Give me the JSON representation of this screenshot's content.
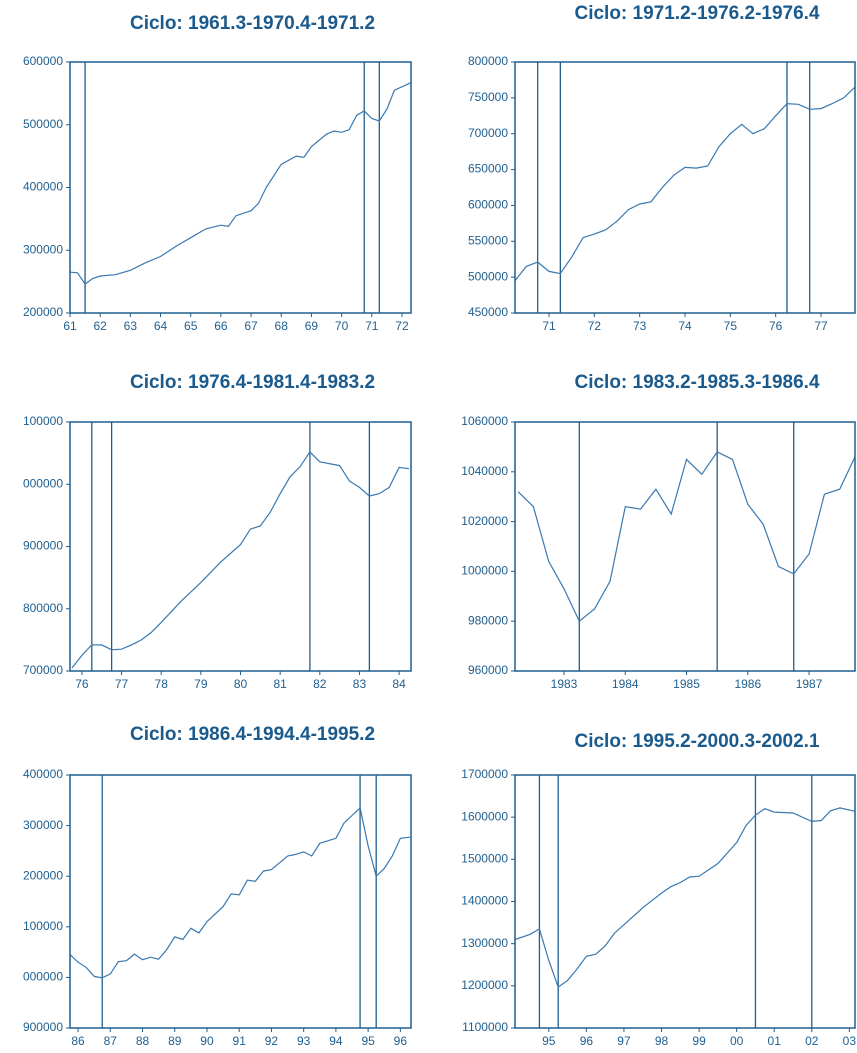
{
  "chart_data": [
    {
      "type": "line",
      "title": "Ciclo: 1961.3-1970.4-1971.2",
      "color": "#3a78b0",
      "x": [
        1961.0,
        1961.25,
        1961.5,
        1961.75,
        1962.0,
        1962.5,
        1963.0,
        1963.5,
        1964.0,
        1964.5,
        1965.0,
        1965.5,
        1966.0,
        1966.25,
        1966.5,
        1967.0,
        1967.25,
        1967.5,
        1968.0,
        1968.5,
        1968.75,
        1969.0,
        1969.5,
        1969.75,
        1970.0,
        1970.25,
        1970.5,
        1970.75,
        1971.0,
        1971.25,
        1971.5,
        1971.75,
        1972.3
      ],
      "series": [
        {
          "values": [
            265000,
            264000,
            246000,
            255000,
            259000,
            261000,
            268000,
            280000,
            290000,
            306000,
            320000,
            334000,
            340000,
            338000,
            355000,
            363000,
            375000,
            400000,
            437000,
            450000,
            448000,
            465000,
            485000,
            490000,
            488000,
            492000,
            515000,
            522000,
            510000,
            506000,
            525000,
            555000,
            567000
          ]
        }
      ],
      "xlim": [
        1961,
        1972.3
      ],
      "ylim": [
        200000,
        600000
      ],
      "xticks": [
        {
          "value": 1961,
          "label": "61"
        },
        {
          "value": 1962,
          "label": "62"
        },
        {
          "value": 1963,
          "label": "63"
        },
        {
          "value": 1964,
          "label": "64"
        },
        {
          "value": 1965,
          "label": "65"
        },
        {
          "value": 1966,
          "label": "66"
        },
        {
          "value": 1967,
          "label": "67"
        },
        {
          "value": 1968,
          "label": "68"
        },
        {
          "value": 1969,
          "label": "69"
        },
        {
          "value": 1970,
          "label": "70"
        },
        {
          "value": 1971,
          "label": "71"
        },
        {
          "value": 1972,
          "label": "72"
        }
      ],
      "yticks": [
        200000,
        300000,
        400000,
        500000,
        600000
      ],
      "vlines": [
        1961.5,
        1970.75,
        1971.25
      ]
    },
    {
      "type": "line",
      "title": "Ciclo: 1971.2-1976.2-1976.4",
      "color": "#3a78b0",
      "x": [
        1970.25,
        1970.5,
        1970.75,
        1971.0,
        1971.25,
        1971.5,
        1971.75,
        1972.0,
        1972.25,
        1972.5,
        1972.75,
        1973.0,
        1973.25,
        1973.5,
        1973.75,
        1974.0,
        1974.25,
        1974.5,
        1974.75,
        1975.0,
        1975.25,
        1975.5,
        1975.75,
        1976.0,
        1976.25,
        1976.5,
        1976.75,
        1977.0,
        1977.25,
        1977.5,
        1977.75
      ],
      "series": [
        {
          "values": [
            495000,
            515000,
            521000,
            508000,
            505000,
            528000,
            555000,
            560000,
            566000,
            578000,
            594000,
            602000,
            605000,
            625000,
            642000,
            653000,
            652000,
            655000,
            682000,
            700000,
            713000,
            700000,
            707000,
            725000,
            742000,
            741000,
            734000,
            735000,
            742000,
            750000,
            765000
          ]
        }
      ],
      "xlim": [
        1970.25,
        1977.75
      ],
      "ylim": [
        450000,
        800000
      ],
      "xticks": [
        {
          "value": 1971,
          "label": "71"
        },
        {
          "value": 1972,
          "label": "72"
        },
        {
          "value": 1973,
          "label": "73"
        },
        {
          "value": 1974,
          "label": "74"
        },
        {
          "value": 1975,
          "label": "75"
        },
        {
          "value": 1976,
          "label": "76"
        },
        {
          "value": 1977,
          "label": "77"
        }
      ],
      "yticks": [
        450000,
        500000,
        550000,
        600000,
        650000,
        700000,
        750000,
        800000
      ],
      "vlines": [
        1970.75,
        1971.25,
        1976.25,
        1976.75
      ]
    },
    {
      "type": "line",
      "title": "Ciclo: 1976.4-1981.4-1983.2",
      "color": "#3a78b0",
      "x": [
        1975.75,
        1976.0,
        1976.25,
        1976.5,
        1976.75,
        1977.0,
        1977.25,
        1977.5,
        1977.75,
        1978.0,
        1978.5,
        1979.0,
        1979.5,
        1980.0,
        1980.25,
        1980.5,
        1980.75,
        1981.0,
        1981.25,
        1981.5,
        1981.75,
        1982.0,
        1982.5,
        1982.75,
        1983.0,
        1983.25,
        1983.5,
        1983.75,
        1984.0,
        1984.25
      ],
      "series": [
        {
          "values": [
            705000,
            725000,
            742000,
            742000,
            734000,
            735000,
            742000,
            750000,
            762000,
            778000,
            812000,
            842000,
            875000,
            903000,
            928000,
            933000,
            955000,
            985000,
            1012000,
            1028000,
            1052000,
            1036000,
            1030000,
            1005000,
            995000,
            981000,
            985000,
            995000,
            1027000,
            1025000
          ]
        }
      ],
      "xlim": [
        1975.7,
        1984.3
      ],
      "ylim": [
        700000,
        1100000
      ],
      "xticks": [
        {
          "value": 1976,
          "label": "76"
        },
        {
          "value": 1977,
          "label": "77"
        },
        {
          "value": 1978,
          "label": "78"
        },
        {
          "value": 1979,
          "label": "79"
        },
        {
          "value": 1980,
          "label": "80"
        },
        {
          "value": 1981,
          "label": "81"
        },
        {
          "value": 1982,
          "label": "82"
        },
        {
          "value": 1983,
          "label": "83"
        },
        {
          "value": 1984,
          "label": "84"
        }
      ],
      "yticks": [
        700000,
        800000,
        900000,
        {
          "value": 1000000,
          "label": "000000"
        },
        {
          "value": 1100000,
          "label": "100000"
        }
      ],
      "vlines": [
        1976.25,
        1976.75,
        1981.75,
        1983.25
      ]
    },
    {
      "type": "line",
      "title": "Ciclo: 1983.2-1985.3-1986.4",
      "color": "#3a78b0",
      "x": [
        1982.25,
        1982.5,
        1982.75,
        1983.0,
        1983.25,
        1983.5,
        1983.75,
        1984.0,
        1984.25,
        1984.5,
        1984.75,
        1985.0,
        1985.25,
        1985.5,
        1985.75,
        1986.0,
        1986.25,
        1986.5,
        1986.75,
        1987.0,
        1987.25,
        1987.5,
        1987.75
      ],
      "series": [
        {
          "values": [
            1032000,
            1026000,
            1004000,
            993000,
            980000,
            985000,
            996000,
            1026000,
            1025000,
            1033000,
            1023000,
            1045000,
            1039000,
            1048000,
            1045000,
            1027000,
            1019000,
            1002000,
            999000,
            1007000,
            1031000,
            1033000,
            1046000
          ]
        }
      ],
      "xlim": [
        1982.2,
        1987.75
      ],
      "ylim": [
        960000,
        1060000
      ],
      "xticks": [
        1983,
        1984,
        1985,
        1986,
        1987
      ],
      "yticks": [
        960000,
        980000,
        1000000,
        1020000,
        1040000,
        1060000
      ],
      "vlines": [
        1983.25,
        1985.5,
        1986.75
      ]
    },
    {
      "type": "line",
      "title": "Ciclo: 1986.4-1994.4-1995.2",
      "color": "#3a78b0",
      "x": [
        1985.75,
        1986.0,
        1986.25,
        1986.5,
        1986.75,
        1987.0,
        1987.25,
        1987.5,
        1987.75,
        1988.0,
        1988.25,
        1988.5,
        1988.75,
        1989.0,
        1989.25,
        1989.5,
        1989.75,
        1990.0,
        1990.5,
        1990.75,
        1991.0,
        1991.25,
        1991.5,
        1991.75,
        1992.0,
        1992.5,
        1992.75,
        1993.0,
        1993.25,
        1993.5,
        1993.75,
        1994.0,
        1994.25,
        1994.5,
        1994.75,
        1995.0,
        1995.25,
        1995.5,
        1995.75,
        1996.0,
        1996.3
      ],
      "series": [
        {
          "values": [
            1045000,
            1030000,
            1020000,
            1002000,
            999000,
            1007000,
            1031000,
            1033000,
            1046000,
            1035000,
            1040000,
            1036000,
            1055000,
            1080000,
            1075000,
            1097000,
            1088000,
            1110000,
            1140000,
            1165000,
            1163000,
            1192000,
            1190000,
            1210000,
            1213000,
            1240000,
            1243000,
            1248000,
            1240000,
            1265000,
            1270000,
            1275000,
            1305000,
            1320000,
            1335000,
            1260000,
            1200000,
            1215000,
            1240000,
            1275000,
            1277000
          ]
        }
      ],
      "xlim": [
        1985.75,
        1996.33
      ],
      "ylim": [
        900000,
        1400000
      ],
      "xticks": [
        {
          "value": 1986,
          "label": "86"
        },
        {
          "value": 1987,
          "label": "87"
        },
        {
          "value": 1988,
          "label": "88"
        },
        {
          "value": 1989,
          "label": "89"
        },
        {
          "value": 1990,
          "label": "90"
        },
        {
          "value": 1991,
          "label": "91"
        },
        {
          "value": 1992,
          "label": "92"
        },
        {
          "value": 1993,
          "label": "93"
        },
        {
          "value": 1994,
          "label": "94"
        },
        {
          "value": 1995,
          "label": "95"
        },
        {
          "value": 1996,
          "label": "96"
        }
      ],
      "yticks": [
        900000,
        {
          "value": 1000000,
          "label": "000000"
        },
        {
          "value": 1100000,
          "label": "100000"
        },
        {
          "value": 1200000,
          "label": "200000"
        },
        {
          "value": 1300000,
          "label": "300000"
        },
        {
          "value": 1400000,
          "label": "400000"
        }
      ],
      "vlines": [
        1986.75,
        1994.75,
        1995.25
      ]
    },
    {
      "type": "line",
      "title": "Ciclo: 1995.2-2000.3-2002.1",
      "color": "#3a78b0",
      "x": [
        1994.1,
        1994.5,
        1994.75,
        1995.0,
        1995.25,
        1995.5,
        1995.75,
        1996.0,
        1996.25,
        1996.5,
        1996.75,
        1997.0,
        1997.5,
        1998.0,
        1998.25,
        1998.5,
        1998.75,
        1999.0,
        1999.5,
        2000.0,
        2000.25,
        2000.5,
        2000.75,
        2001.0,
        2001.5,
        2002.0,
        2002.25,
        2002.5,
        2002.75,
        2003.15
      ],
      "series": [
        {
          "values": [
            1310000,
            1322000,
            1335000,
            1260000,
            1197000,
            1213000,
            1240000,
            1270000,
            1275000,
            1295000,
            1325000,
            1345000,
            1385000,
            1420000,
            1435000,
            1445000,
            1458000,
            1460000,
            1490000,
            1540000,
            1580000,
            1605000,
            1620000,
            1612000,
            1610000,
            1590000,
            1592000,
            1615000,
            1622000,
            1614000
          ]
        }
      ],
      "xlim": [
        1994.1,
        2003.15
      ],
      "ylim": [
        1100000,
        1700000
      ],
      "xticks": [
        {
          "value": 1995,
          "label": "95"
        },
        {
          "value": 1996,
          "label": "96"
        },
        {
          "value": 1997,
          "label": "97"
        },
        {
          "value": 1998,
          "label": "98"
        },
        {
          "value": 1999,
          "label": "99"
        },
        {
          "value": 2000,
          "label": "00"
        },
        {
          "value": 2001,
          "label": "01"
        },
        {
          "value": 2002,
          "label": "02"
        },
        {
          "value": 2003,
          "label": "03"
        }
      ],
      "yticks": [
        1100000,
        1200000,
        1300000,
        1400000,
        1500000,
        1600000,
        1700000
      ],
      "vlines": [
        1994.75,
        1995.25,
        2000.5,
        2002.0
      ]
    }
  ]
}
